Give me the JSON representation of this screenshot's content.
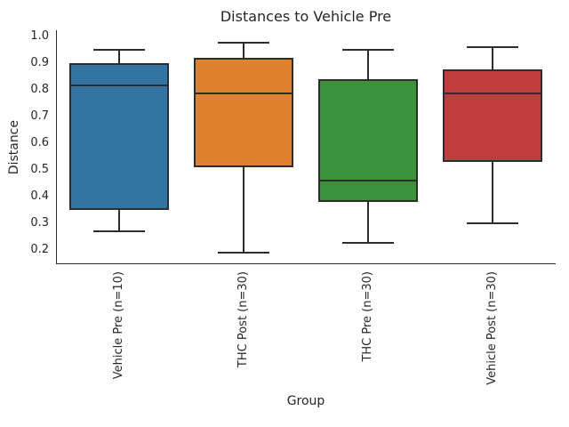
{
  "figure": {
    "background": "#ffffff"
  },
  "colors": {
    "text": "#262626",
    "edge": "#2d2d2d",
    "blue": "#3274A1",
    "orange": "#E1812C",
    "green": "#3A923A",
    "red": "#C03D3E"
  },
  "chart_data": {
    "type": "boxplot",
    "title": "Distances to Vehicle Pre",
    "xlabel": "Group",
    "ylabel": "Distance",
    "ylim": [
      0.153,
      1.022
    ],
    "grid": false,
    "y_tick_labels": [
      "1.0",
      "0.9",
      "0.8",
      "0.7",
      "0.6",
      "0.5",
      "0.4",
      "0.3",
      "0.2"
    ],
    "groups": [
      {
        "label": "Vehicle Pre (n=10)",
        "color": "#3274A1",
        "whisker_low": 0.27,
        "q1": 0.35,
        "median": 0.815,
        "q3": 0.9,
        "whisker_high": 0.95
      },
      {
        "label": "THC Post (n=30)",
        "color": "#E1812C",
        "whisker_low": 0.19,
        "q1": 0.51,
        "median": 0.785,
        "q3": 0.92,
        "whisker_high": 0.975
      },
      {
        "label": "THC Pre (n=30)",
        "color": "#3A923A",
        "whisker_low": 0.225,
        "q1": 0.38,
        "median": 0.46,
        "q3": 0.84,
        "whisker_high": 0.95
      },
      {
        "label": "Vehicle Post (n=30)",
        "color": "#C03D3E",
        "whisker_low": 0.3,
        "q1": 0.53,
        "median": 0.785,
        "q3": 0.875,
        "whisker_high": 0.96
      }
    ]
  }
}
